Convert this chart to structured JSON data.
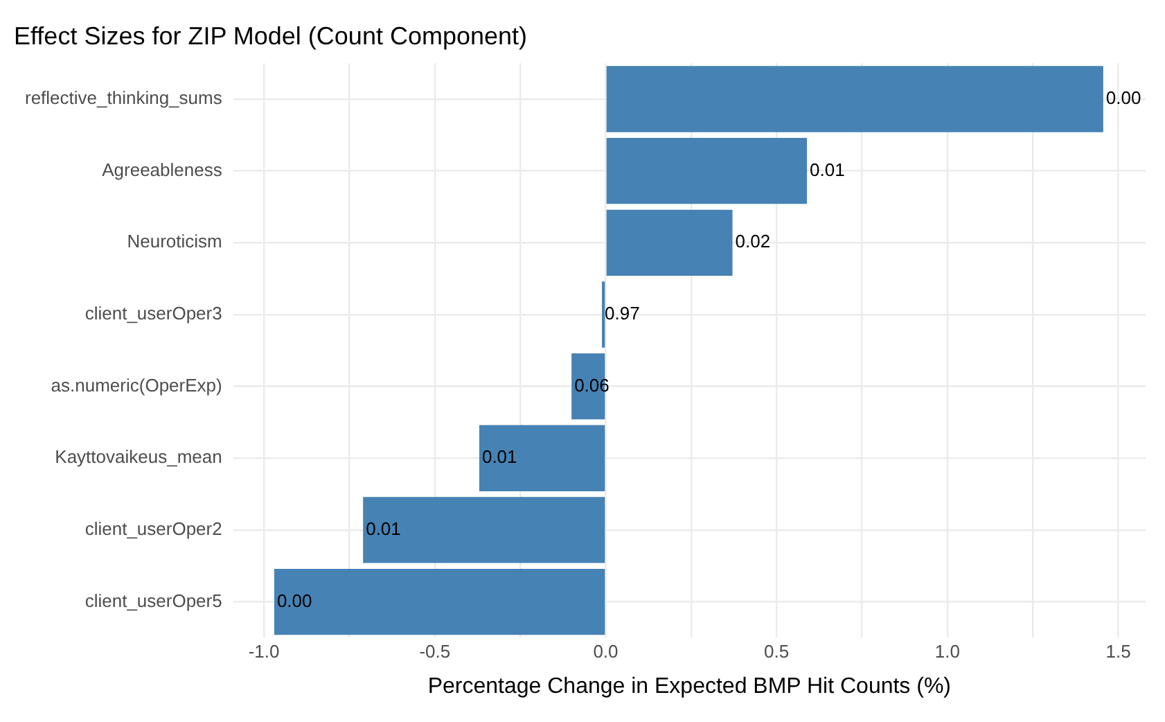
{
  "chart_data": {
    "type": "bar",
    "orientation": "horizontal",
    "title": "Effect Sizes for ZIP Model (Count Component)",
    "xlabel": "Percentage Change in Expected BMP Hit Counts (%)",
    "categories": [
      "reflective_thinking_sums",
      "Agreeableness",
      "Neuroticism",
      "client_userOper3",
      "as.numeric(OperExp)",
      "Kayttovaikeus_mean",
      "client_userOper2",
      "client_userOper5"
    ],
    "values": [
      1.456,
      0.589,
      0.371,
      -0.011,
      -0.1,
      -0.37,
      -0.71,
      -0.97
    ],
    "annotations": [
      {
        "text": "0.00",
        "x": 1.456,
        "y": "reflective_thinking_sums"
      },
      {
        "text": "0.01",
        "x": 0.589,
        "y": "Agreeableness"
      },
      {
        "text": "0.02",
        "x": 0.371,
        "y": "Neuroticism"
      },
      {
        "text": "0.97",
        "x": -0.011,
        "y": "client_userOper3"
      },
      {
        "text": "0.06",
        "x": -0.1,
        "y": "as.numeric(OperExp)"
      },
      {
        "text": "0.01",
        "x": -0.37,
        "y": "Kayttovaikeus_mean"
      },
      {
        "text": "0.01",
        "x": -0.71,
        "y": "client_userOper2"
      },
      {
        "text": "0.00",
        "x": -0.97,
        "y": "client_userOper5"
      }
    ],
    "color": "#4682b4",
    "xlim": [
      -1.09,
      1.58
    ],
    "xticks": [
      {
        "value": -1,
        "label": "-1.0"
      },
      {
        "value": -0.75,
        "label": null
      },
      {
        "value": -0.5,
        "label": "-0.5"
      },
      {
        "value": -0.25,
        "label": null
      },
      {
        "value": 0,
        "label": "0.0"
      },
      {
        "value": 0.25,
        "label": null
      },
      {
        "value": 0.5,
        "label": "0.5"
      },
      {
        "value": 0.75,
        "label": null
      },
      {
        "value": 1,
        "label": "1.0"
      },
      {
        "value": 1.25,
        "label": null
      },
      {
        "value": 1.5,
        "label": "1.5"
      }
    ],
    "grid": true,
    "legend": false
  }
}
